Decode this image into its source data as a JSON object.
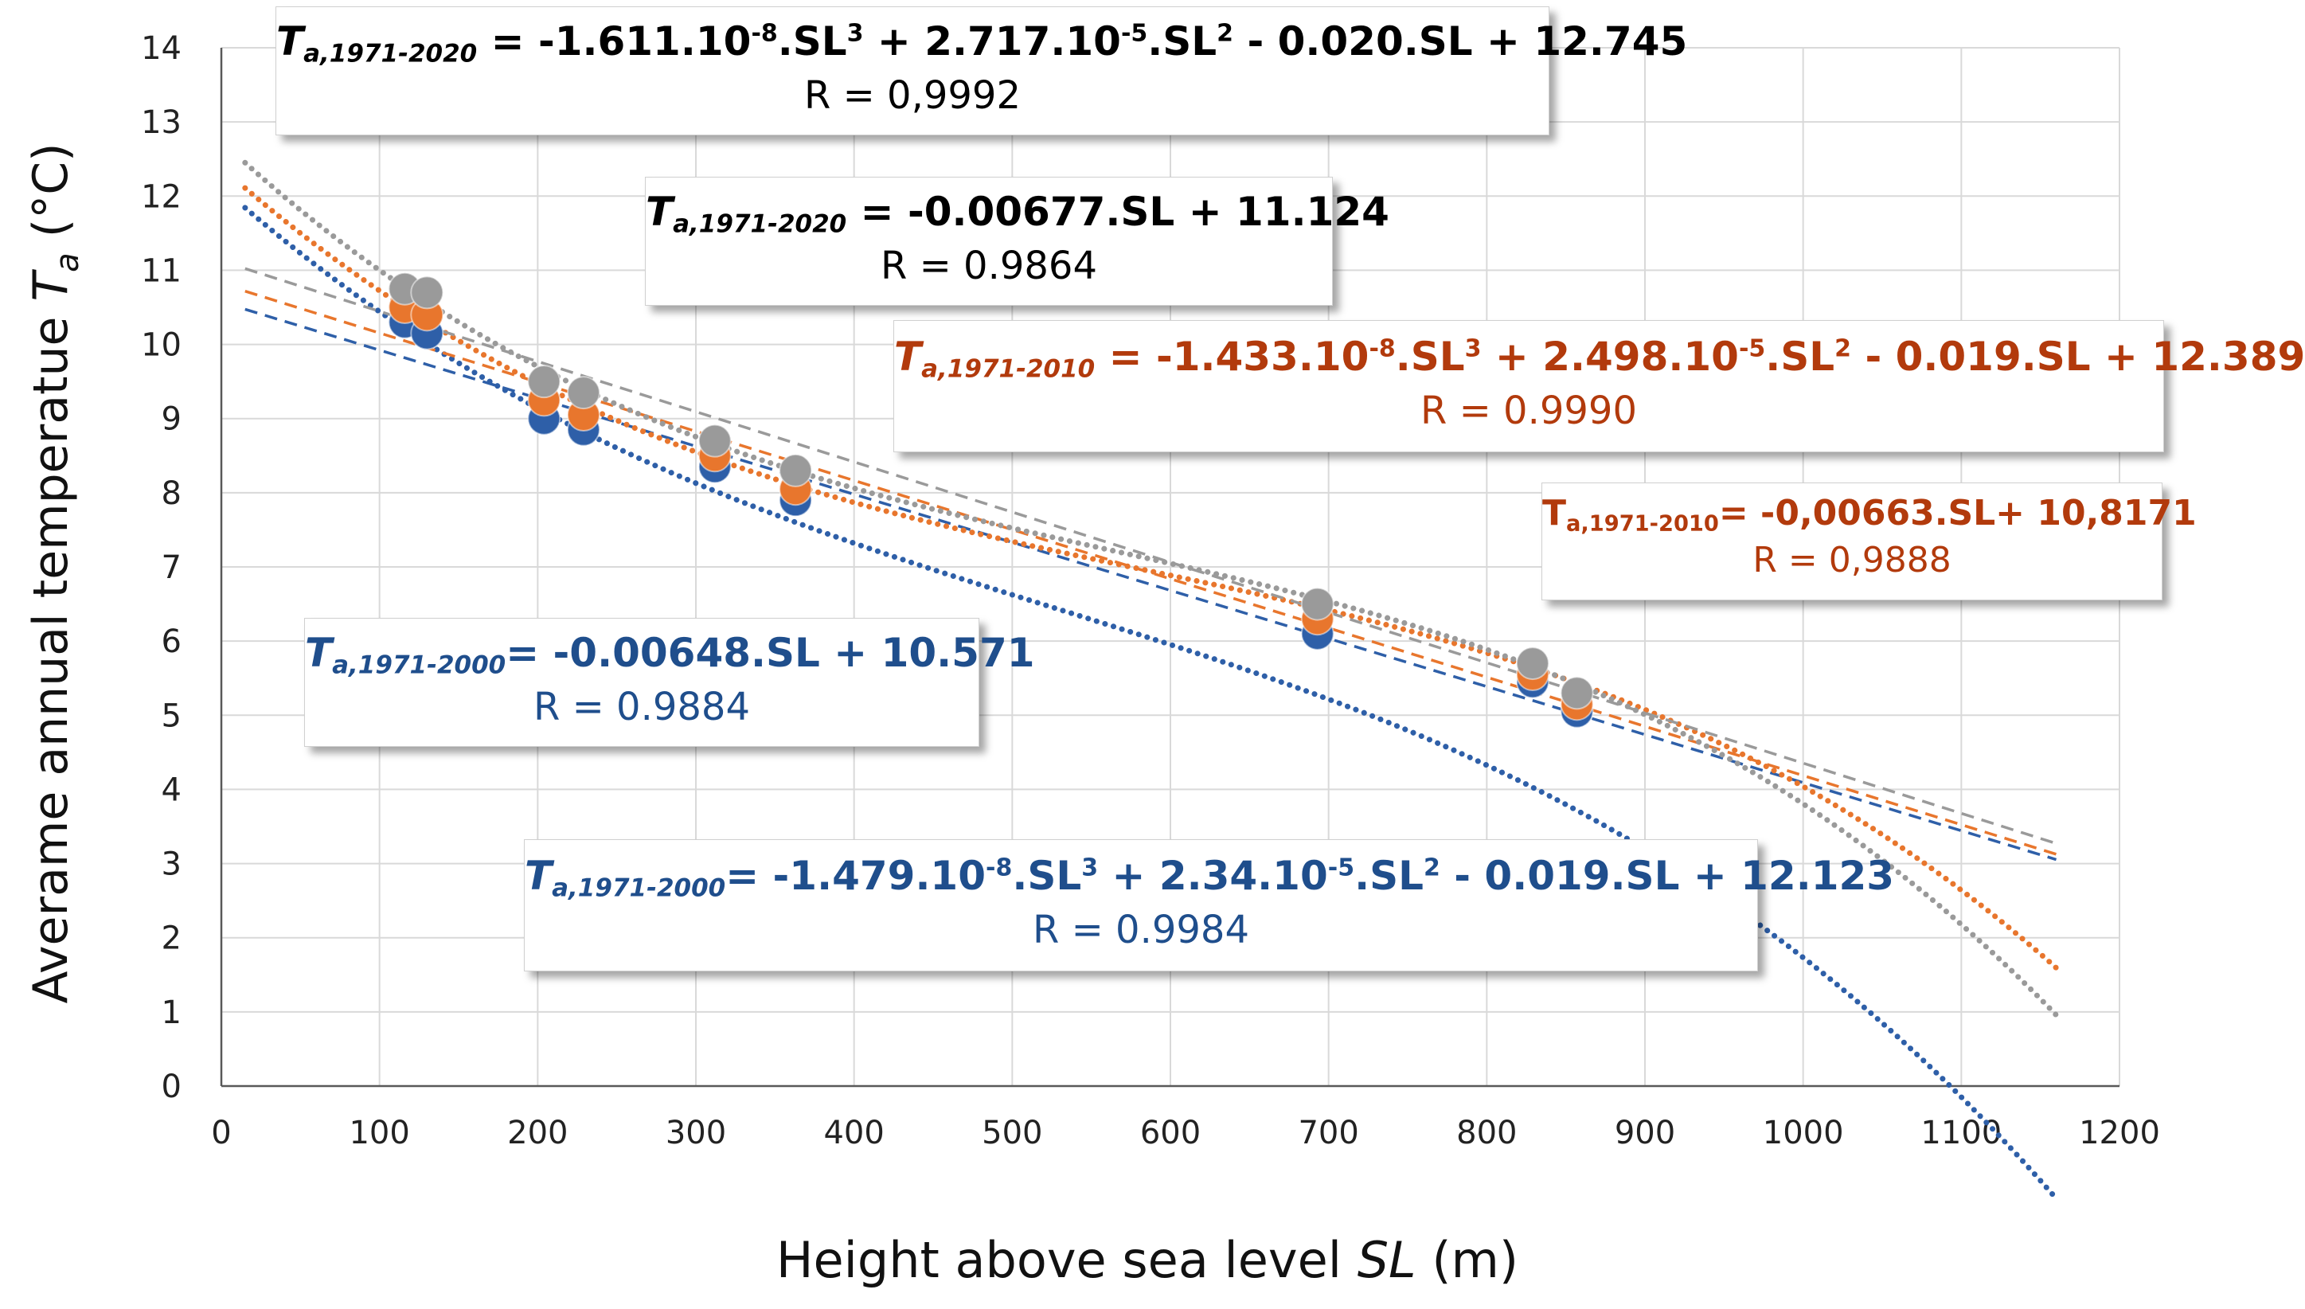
{
  "chart_data": {
    "type": "scatter",
    "xlabel": "Height above sea level",
    "xlabel_var": "SL",
    "xlabel_unit": "(m)",
    "ylabel": "Averame  annual  temperatue",
    "ylabel_var": "T",
    "ylabel_var_sub": "a",
    "ylabel_unit": "(°C)",
    "xlim": [
      0,
      1200
    ],
    "ylim": [
      0,
      14
    ],
    "xticks": [
      0,
      100,
      200,
      300,
      400,
      500,
      600,
      700,
      800,
      900,
      1000,
      1100,
      1200
    ],
    "yticks": [
      0,
      1,
      2,
      3,
      4,
      5,
      6,
      7,
      8,
      9,
      10,
      11,
      12,
      13,
      14
    ],
    "grid": true,
    "trend_x_range": [
      15,
      1160
    ],
    "series": [
      {
        "name": "1971-2000",
        "color": "#2e5fa8",
        "x": [
          116,
          130,
          204,
          229,
          312,
          363,
          693,
          829,
          857
        ],
        "y": [
          10.3,
          10.15,
          9.0,
          8.85,
          8.35,
          7.9,
          6.1,
          5.45,
          5.05
        ],
        "linear": {
          "a": -0.00648,
          "b": 10.571
        },
        "cubic": {
          "a3": -1.479e-08,
          "a2": 2.34e-05,
          "a1": -0.019,
          "a0": 12.123
        }
      },
      {
        "name": "1971-2010",
        "color": "#e8762d",
        "x": [
          116,
          130,
          204,
          229,
          312,
          363,
          693,
          829,
          857
        ],
        "y": [
          10.5,
          10.4,
          9.25,
          9.05,
          8.5,
          8.05,
          6.3,
          5.55,
          5.15
        ],
        "linear": {
          "a": -0.00663,
          "b": 10.8171
        },
        "cubic": {
          "a3": -1.433e-08,
          "a2": 2.498e-05,
          "a1": -0.019,
          "a0": 12.389
        }
      },
      {
        "name": "1971-2020",
        "color": "#9a9a9a",
        "x": [
          116,
          130,
          204,
          229,
          312,
          363,
          693,
          829,
          857
        ],
        "y": [
          10.75,
          10.7,
          9.5,
          9.35,
          8.7,
          8.3,
          6.5,
          5.7,
          5.3
        ],
        "linear": {
          "a": -0.00677,
          "b": 11.124
        },
        "cubic": {
          "a3": -1.611e-08,
          "a2": 2.717e-05,
          "a1": -0.02,
          "a0": 12.745
        }
      }
    ],
    "annotations": [
      {
        "id": "cubic2020",
        "color": "#000000",
        "T": "T",
        "sub": "a,1971-2020",
        "rhs": " = -1.611.10",
        "exp1": "-8",
        "p2": ".SL",
        "exp2": "3",
        "p3": " + 2.717.10",
        "exp3": "-5",
        "p4": ".SL",
        "exp4": "2",
        "p5": " - 0.020.SL + 12.745",
        "r": "R = 0,9992"
      },
      {
        "id": "linear2020",
        "color": "#000000",
        "T": "T",
        "sub": "a,1971-2020",
        "rhs": " = -0.00677.SL + 11.124",
        "r": "R = 0.9864"
      },
      {
        "id": "cubic2010",
        "color": "#b23a0c",
        "T": "T",
        "sub": "a,1971-2010",
        "rhs": " = -1.433.10",
        "exp1": "-8",
        "p2": ".SL",
        "exp2": "3",
        "p3": " + 2.498.10",
        "exp3": "-5",
        "p4": ".SL",
        "exp4": "2",
        "p5": " - 0.019.SL + 12.389",
        "r": "R = 0.9990"
      },
      {
        "id": "linear2010",
        "color": "#b23a0c",
        "T": "T",
        "sub": "a,1971-2010",
        "rhs": "= -0,00663.SL+ 10,8171",
        "r": "R = 0,9888"
      },
      {
        "id": "linear2000",
        "color": "#1f4e8c",
        "T": "T",
        "sub": "a,1971-2000",
        "rhs": "= -0.00648.SL + 10.571",
        "r": "R = 0.9884"
      },
      {
        "id": "cubic2000",
        "color": "#1f4e8c",
        "T": "T",
        "sub": "a,1971-2000",
        "rhs": "= -1.479.10",
        "exp1": "-8",
        "p2": ".SL",
        "exp2": "3",
        "p3": " + 2.34.10",
        "exp3": "-5",
        "p4": ".SL",
        "exp4": "2",
        "p5": " - 0.019.SL + 12.123",
        "r": "R = 0.9984"
      }
    ]
  }
}
